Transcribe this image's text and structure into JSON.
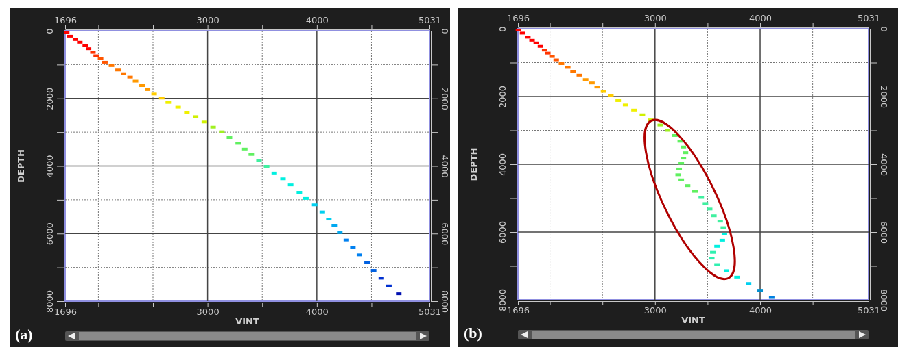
{
  "chart_data": [
    {
      "type": "scatter",
      "title": "(a)",
      "xlabel": "VINT",
      "ylabel": "DEPTH",
      "marker": "square",
      "grid": true,
      "xlim": [
        1696,
        5031
      ],
      "xticks": [
        1696,
        {
          "value": 2000,
          "label": null
        },
        {
          "value": 2500,
          "label": null
        },
        3000,
        {
          "value": 3500,
          "label": null
        },
        4000,
        {
          "value": 4500,
          "label": null
        },
        5031
      ],
      "x2lim": [
        1696,
        5031
      ],
      "x2ticks": [
        1696,
        {
          "value": 2000,
          "label": null
        },
        {
          "value": 2500,
          "label": null
        },
        3000,
        {
          "value": 3500,
          "label": null
        },
        4000,
        {
          "value": 4500,
          "label": null
        },
        5031
      ],
      "ylim": [
        8000,
        0
      ],
      "yticks": [
        0,
        {
          "value": 1000,
          "label": null
        },
        2000,
        {
          "value": 3000,
          "label": null
        },
        4000,
        {
          "value": 5000,
          "label": null
        },
        6000,
        {
          "value": 7000,
          "label": null
        },
        8000
      ],
      "y2lim": [
        8000,
        0
      ],
      "y2ticks": [
        0,
        {
          "value": 1000,
          "label": null
        },
        2000,
        {
          "value": 3000,
          "label": null
        },
        4000,
        {
          "value": 5000,
          "label": null
        },
        6000,
        {
          "value": 7000,
          "label": null
        },
        8000
      ],
      "x": [
        1710,
        1740,
        1790,
        1830,
        1880,
        1910,
        1950,
        1980,
        2020,
        2060,
        2120,
        2180,
        2230,
        2290,
        2340,
        2400,
        2450,
        2510,
        2580,
        2640,
        2730,
        2810,
        2890,
        2970,
        3050,
        3130,
        3200,
        3280,
        3340,
        3400,
        3470,
        3540,
        3610,
        3690,
        3760,
        3840,
        3900,
        3980,
        4050,
        4110,
        4160,
        4210,
        4270,
        4330,
        4390,
        4460,
        4520,
        4590,
        4660,
        4750
      ],
      "values": [
        50,
        160,
        260,
        340,
        430,
        530,
        640,
        740,
        820,
        930,
        1030,
        1160,
        1270,
        1370,
        1490,
        1620,
        1740,
        1870,
        1990,
        2120,
        2260,
        2410,
        2540,
        2700,
        2850,
        2990,
        3160,
        3330,
        3500,
        3660,
        3830,
        4010,
        4210,
        4380,
        4560,
        4780,
        4960,
        5150,
        5360,
        5570,
        5770,
        5970,
        6190,
        6420,
        6630,
        6860,
        7090,
        7320,
        7550,
        7780
      ],
      "colors": [
        "#ff0000",
        "#ff0000",
        "#ff0000",
        "#ff0000",
        "#ff0000",
        "#ff0000",
        "#ff3300",
        "#ff3300",
        "#ff5500",
        "#ff5500",
        "#ff7700",
        "#ff7700",
        "#ff7700",
        "#ff7700",
        "#ff9900",
        "#ff9900",
        "#ff9900",
        "#ffcc00",
        "#ffcc00",
        "#f0f000",
        "#f0f000",
        "#f0f000",
        "#d0f000",
        "#d0f000",
        "#a0f020",
        "#a0f020",
        "#60f060",
        "#60f060",
        "#60f060",
        "#60f060",
        "#40f0a0",
        "#40f0a0",
        "#00f0e0",
        "#00f0e0",
        "#00f0e0",
        "#00f0e0",
        "#00f0e0",
        "#00d0f0",
        "#00d0f0",
        "#00d0f0",
        "#00a8f0",
        "#00a8f0",
        "#0080f0",
        "#0080f0",
        "#0080f0",
        "#0060e0",
        "#0060e0",
        "#0030d0",
        "#0030d0",
        "#0010b0"
      ]
    },
    {
      "type": "scatter",
      "title": "(b)",
      "xlabel": "VINT",
      "ylabel": "DEPTH",
      "marker": "square",
      "grid": true,
      "xlim": [
        1696,
        5031
      ],
      "xticks": [
        1696,
        {
          "value": 2000,
          "label": null
        },
        {
          "value": 2500,
          "label": null
        },
        3000,
        {
          "value": 3500,
          "label": null
        },
        4000,
        {
          "value": 4500,
          "label": null
        },
        5031
      ],
      "x2lim": [
        1696,
        5031
      ],
      "x2ticks": [
        1696,
        {
          "value": 2000,
          "label": null
        },
        {
          "value": 2500,
          "label": null
        },
        3000,
        {
          "value": 3500,
          "label": null
        },
        4000,
        {
          "value": 4500,
          "label": null
        },
        5031
      ],
      "ylim": [
        8000,
        0
      ],
      "yticks": [
        0,
        {
          "value": 1000,
          "label": null
        },
        2000,
        {
          "value": 3000,
          "label": null
        },
        4000,
        {
          "value": 5000,
          "label": null
        },
        6000,
        {
          "value": 7000,
          "label": null
        },
        8000
      ],
      "y2lim": [
        8000,
        0
      ],
      "y2ticks": [
        0,
        {
          "value": 1000,
          "label": null
        },
        2000,
        {
          "value": 3000,
          "label": null
        },
        4000,
        {
          "value": 5000,
          "label": null
        },
        6000,
        {
          "value": 7000,
          "label": null
        },
        8000
      ],
      "x": [
        1700,
        1740,
        1790,
        1830,
        1870,
        1910,
        1950,
        1980,
        2020,
        2060,
        2110,
        2170,
        2220,
        2280,
        2340,
        2400,
        2450,
        2510,
        2580,
        2650,
        2720,
        2800,
        2880,
        2960,
        3050,
        3120,
        3190,
        3240,
        3270,
        3290,
        3270,
        3250,
        3230,
        3220,
        3250,
        3310,
        3380,
        3440,
        3480,
        3520,
        3560,
        3620,
        3650,
        3660,
        3640,
        3590,
        3550,
        3540,
        3590,
        3680,
        3780,
        3890,
        4000,
        4110
      ],
      "values": [
        40,
        130,
        250,
        340,
        420,
        520,
        630,
        720,
        820,
        920,
        1030,
        1140,
        1260,
        1370,
        1500,
        1600,
        1720,
        1850,
        1970,
        2120,
        2250,
        2400,
        2540,
        2690,
        2840,
        3000,
        3150,
        3320,
        3490,
        3660,
        3820,
        3970,
        4140,
        4310,
        4460,
        4630,
        4800,
        4980,
        5160,
        5320,
        5520,
        5680,
        5870,
        6060,
        6240,
        6420,
        6600,
        6770,
        6960,
        7140,
        7330,
        7520,
        7720,
        7930
      ],
      "colors": [
        "#ff0000",
        "#ff0000",
        "#ff0000",
        "#ff0000",
        "#ff0000",
        "#ff0000",
        "#ff3300",
        "#ff3300",
        "#ff5500",
        "#ff5500",
        "#ff7700",
        "#ff7700",
        "#ff7700",
        "#ff7700",
        "#ff9900",
        "#ff9900",
        "#ff9900",
        "#ffcc00",
        "#ffcc00",
        "#f0f000",
        "#f0f000",
        "#f0f000",
        "#d0f000",
        "#d0f000",
        "#a0f020",
        "#a0f020",
        "#60f060",
        "#60f060",
        "#60f060",
        "#60f060",
        "#60f060",
        "#60f060",
        "#60f060",
        "#60f060",
        "#60f060",
        "#60f060",
        "#60f060",
        "#40f0a0",
        "#40f0a0",
        "#40f0a0",
        "#40f0a0",
        "#40f0a0",
        "#40f0a0",
        "#00f0e0",
        "#00f0e0",
        "#00f0e0",
        "#30f0b0",
        "#30f0b0",
        "#30f0b0",
        "#00f0e0",
        "#00f0e0",
        "#00d0f0",
        "#0090d0",
        "#0080e0"
      ]
    }
  ]
}
